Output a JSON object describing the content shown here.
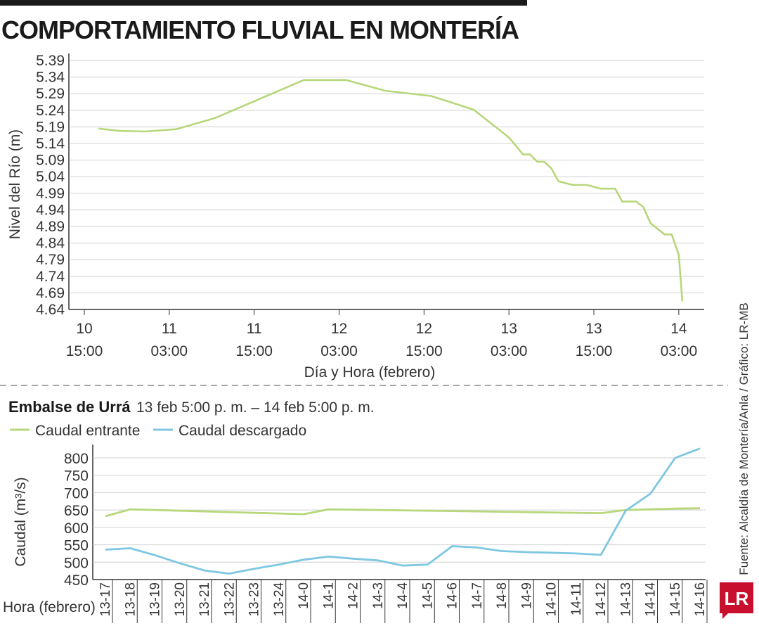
{
  "title": "COMPORTAMIENTO FLUVIAL EN MONTERÍA",
  "source": "Fuente: Alcaldía de Montería/Anla / Gráfico: LR-MB",
  "logo_text": "LR",
  "colors": {
    "green": "#b7d77a",
    "blue": "#7ec7e2",
    "grid": "#d0d0d0",
    "axis": "#333333"
  },
  "chart_data": [
    {
      "type": "line",
      "title": "",
      "ylabel": "Nivel del Río (m)",
      "xlabel": "Día y Hora (febrero)",
      "yticks": [
        "5.39",
        "5.34",
        "5.29",
        "5.24",
        "5.19",
        "5.14",
        "5.09",
        "5.04",
        "4.99",
        "4.94",
        "4.89",
        "4.84",
        "4.79",
        "4.74",
        "4.69",
        "4.64"
      ],
      "ylim": [
        4.64,
        5.39
      ],
      "xlim_hours": [
        0,
        111
      ],
      "xticks": [
        {
          "h": 0,
          "day": "10",
          "time": "15:00"
        },
        {
          "h": 12,
          "day": "11",
          "time": "03:00"
        },
        {
          "h": 24,
          "day": "11",
          "time": "15:00"
        },
        {
          "h": 36,
          "day": "12",
          "time": "03:00"
        },
        {
          "h": 48,
          "day": "12",
          "time": "15:00"
        },
        {
          "h": 60,
          "day": "13",
          "time": "03:00"
        },
        {
          "h": 72,
          "day": "13",
          "time": "15:00"
        },
        {
          "h": 84,
          "day": "14",
          "time": "03:00"
        }
      ],
      "series": [
        {
          "x": [
            2,
            5,
            8.5,
            13,
            18.5,
            23,
            31,
            37,
            42.5,
            49,
            55,
            60,
            62,
            63,
            64,
            65,
            66,
            67,
            69,
            70,
            71,
            73,
            74,
            75,
            76,
            77,
            78,
            79,
            80,
            82,
            83,
            84,
            84.5
          ],
          "y": [
            5.185,
            5.178,
            5.176,
            5.183,
            5.217,
            5.258,
            5.331,
            5.331,
            5.299,
            5.283,
            5.242,
            5.158,
            5.107,
            5.107,
            5.085,
            5.085,
            5.065,
            5.026,
            5.015,
            5.015,
            5.015,
            5.004,
            5.004,
            5.004,
            4.965,
            4.965,
            4.965,
            4.948,
            4.9,
            4.866,
            4.866,
            4.804,
            4.664
          ]
        }
      ]
    },
    {
      "type": "line",
      "title": "Embalse de Urrá",
      "subtitle": "13 feb 5:00 p. m. – 14 feb 5:00 p. m.",
      "ylabel": "Caudal (m³/s)",
      "xlabel": "Hora (febrero)",
      "yticks": [
        "800",
        "750",
        "700",
        "650",
        "600",
        "550",
        "500",
        "450"
      ],
      "ylim": [
        450,
        800
      ],
      "categories": [
        "13-17",
        "13-18",
        "13-19",
        "13-20",
        "13-21",
        "13-22",
        "13-23",
        "13-24",
        "14-0",
        "14-1",
        "14-2",
        "14-3",
        "14-4",
        "14-5",
        "14-6",
        "14-7",
        "14-8",
        "14-9",
        "14-10",
        "14-11",
        "14-12",
        "14-13",
        "14-14",
        "14-15",
        "14-16"
      ],
      "legend": "top-left",
      "series": [
        {
          "name": "Caudal entrante",
          "values": [
            632,
            652,
            650,
            648,
            646,
            644,
            642,
            640,
            638,
            652,
            651,
            650,
            649,
            648,
            647,
            646,
            645,
            644,
            643,
            642,
            641,
            650,
            652,
            654,
            655
          ]
        },
        {
          "name": "Caudal descargado",
          "values": [
            536,
            540,
            520,
            497,
            476,
            467,
            481,
            493,
            507,
            516,
            510,
            505,
            490,
            493,
            546,
            542,
            532,
            529,
            527,
            525,
            521,
            648,
            697,
            800,
            827
          ]
        }
      ]
    }
  ]
}
